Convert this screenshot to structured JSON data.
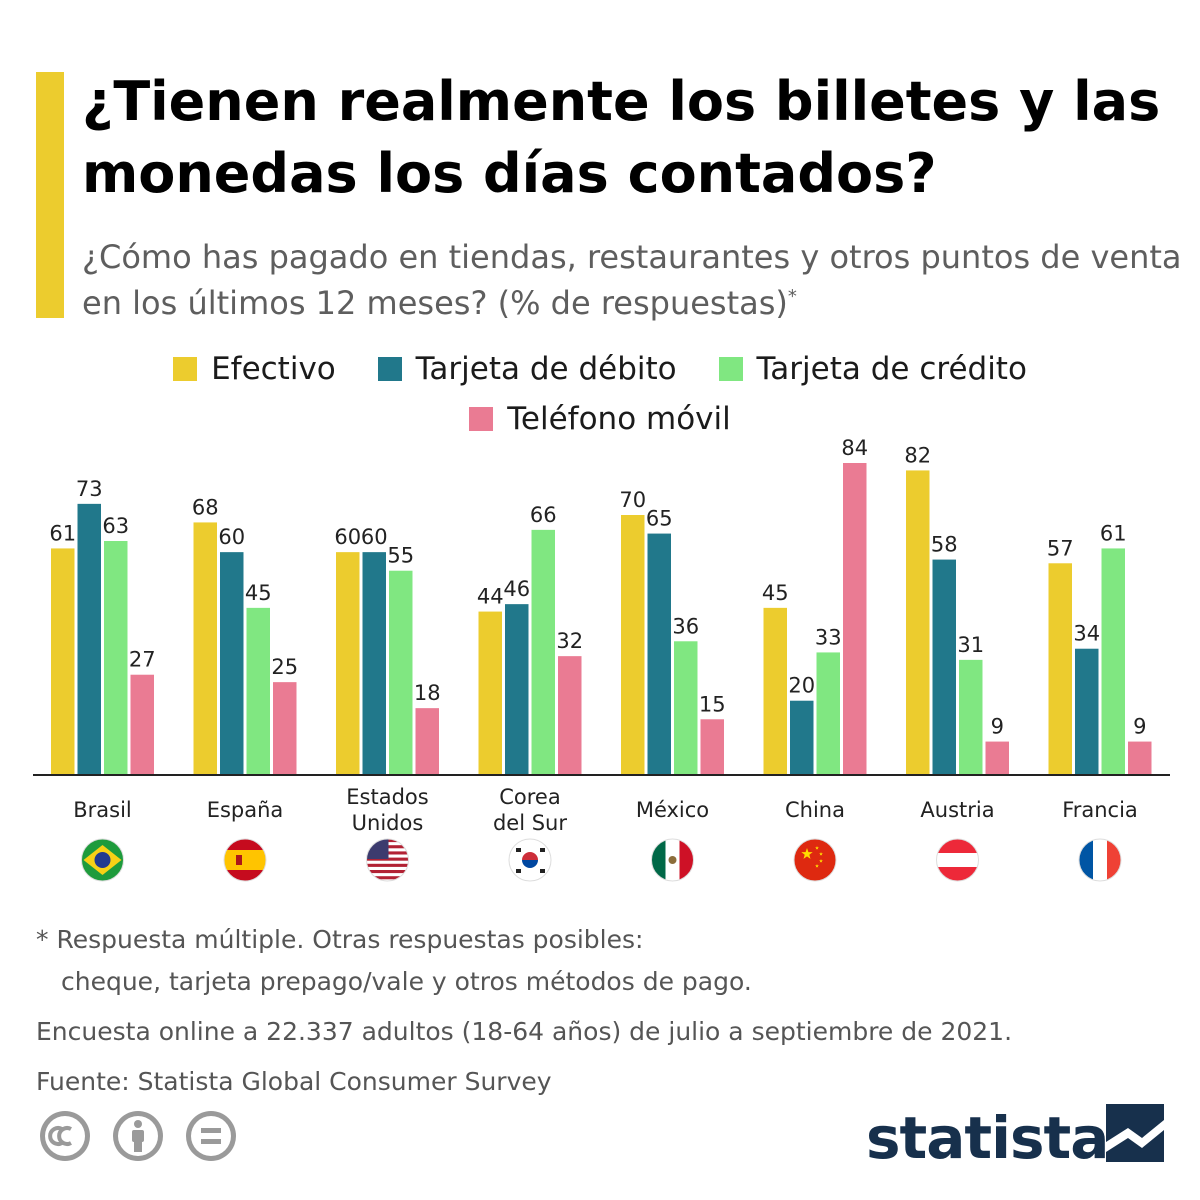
{
  "title": "¿Tienen realmente los billetes y las monedas los días contados?",
  "subtitle": "¿Cómo has pagado en tiendas, restaurantes y otros puntos de venta en los últimos 12 meses? (% de respuestas)",
  "subtitle_mark": "*",
  "footnote": {
    "line1": "* Respuesta múltiple. Otras respuestas posibles:",
    "line2": "cheque, tarjeta prepago/vale y otros métodos de pago.",
    "line3": "Encuesta online a 22.337 adultos (18-64 años) de julio a septiembre de 2021.",
    "source": "Fuente: Statista Global Consumer Survey"
  },
  "brand": "statista",
  "license_icons": [
    "cc-icon",
    "attribution-icon",
    "no-derivatives-icon"
  ],
  "colors": {
    "accent": "#eccc2e",
    "efectivo": "#eccc2e",
    "debito": "#21788b",
    "credito": "#80e781",
    "movil": "#ea7b93",
    "brand": "#17304c"
  },
  "chart_data": {
    "type": "bar",
    "categories": [
      "Brasil",
      "España",
      "Estados Unidos",
      "Corea del Sur",
      "México",
      "China",
      "Austria",
      "Francia"
    ],
    "category_lines": [
      [
        "Brasil"
      ],
      [
        "España"
      ],
      [
        "Estados",
        "Unidos"
      ],
      [
        "Corea",
        "del Sur"
      ],
      [
        "México"
      ],
      [
        "China"
      ],
      [
        "Austria"
      ],
      [
        "Francia"
      ]
    ],
    "flags": [
      "brazil-flag-icon",
      "spain-flag-icon",
      "usa-flag-icon",
      "south-korea-flag-icon",
      "mexico-flag-icon",
      "china-flag-icon",
      "austria-flag-icon",
      "france-flag-icon"
    ],
    "series": [
      {
        "name": "Efectivo",
        "color": "#eccc2e",
        "values": [
          61,
          68,
          60,
          44,
          70,
          45,
          82,
          57
        ]
      },
      {
        "name": "Tarjeta de débito",
        "color": "#21788b",
        "values": [
          73,
          60,
          60,
          46,
          65,
          20,
          58,
          34
        ]
      },
      {
        "name": "Tarjeta de crédito",
        "color": "#80e781",
        "values": [
          63,
          45,
          55,
          66,
          36,
          33,
          31,
          61
        ]
      },
      {
        "name": "Teléfono móvil",
        "color": "#ea7b93",
        "values": [
          27,
          25,
          18,
          32,
          15,
          84,
          9,
          9
        ]
      }
    ],
    "ylim": [
      0,
      84
    ],
    "unit": "%",
    "legend": "top-center",
    "grid": false
  }
}
